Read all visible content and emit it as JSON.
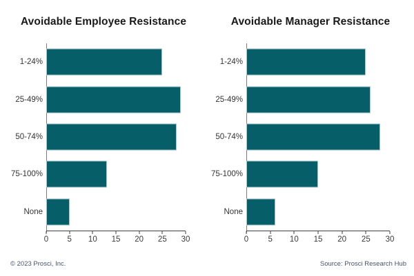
{
  "chart_data": [
    {
      "type": "bar",
      "orientation": "horizontal",
      "title": "Avoidable Employee Resistance",
      "categories": [
        "1-24%",
        "25-49%",
        "50-74%",
        "75-100%",
        "None"
      ],
      "values": [
        25,
        29,
        28,
        13,
        5
      ],
      "xlabel": "",
      "ylabel": "",
      "x_ticks": [
        0,
        5,
        10,
        15,
        20,
        25,
        30
      ],
      "xlim": [
        0,
        30
      ],
      "grid": false,
      "legend": "none"
    },
    {
      "type": "bar",
      "orientation": "horizontal",
      "title": "Avoidable Manager Resistance",
      "categories": [
        "1-24%",
        "25-49%",
        "50-74%",
        "75-100%",
        "None"
      ],
      "values": [
        25,
        26,
        28,
        15,
        6
      ],
      "xlabel": "",
      "ylabel": "",
      "x_ticks": [
        0,
        5,
        10,
        15,
        20,
        25,
        30
      ],
      "xlim": [
        0,
        30
      ],
      "grid": false,
      "legend": "none"
    }
  ],
  "footer": {
    "left": "© 2023 Prosci, Inc.",
    "right": "Source: Prosci Research Hub"
  },
  "colors": {
    "bar_fill": "#065F68",
    "bar_border": "#A8C6D2",
    "y_axis_line": "#7B7B7B",
    "x_axis_line": "#3D3D3D",
    "title_text": "#1A1A1A",
    "tick_text": "#3A3A3A",
    "footer_text": "#45536A",
    "background": "#FFFFFF"
  }
}
